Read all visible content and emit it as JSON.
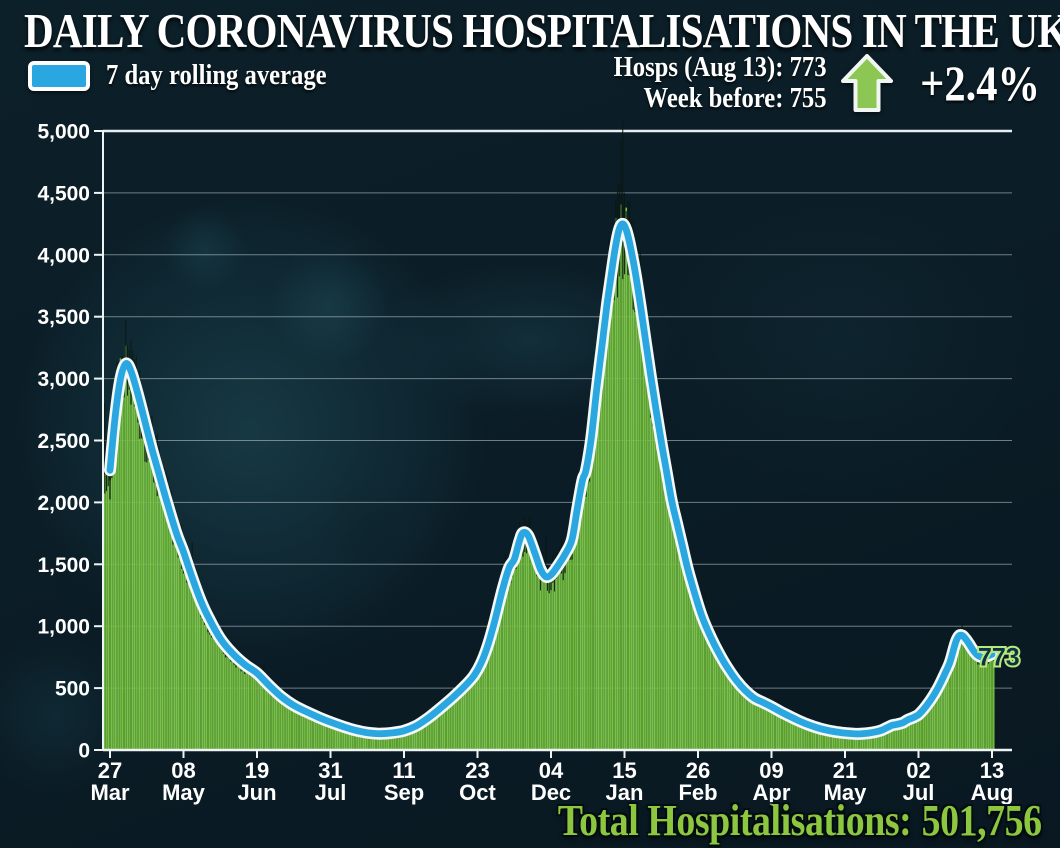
{
  "header": {
    "title": "DAILY CORONAVIRUS HOSPITALISATIONS IN THE UK"
  },
  "legend": {
    "label": "7 day rolling average",
    "swatch_color": "#2aa7e0"
  },
  "stats": {
    "line1": "Hosps (Aug 13): 773",
    "line2": "Week before: 755",
    "change": "+2.4%",
    "arrow_direction": "up",
    "arrow_color": "#8cc653"
  },
  "footer": {
    "label": "Total Hospitalisations:",
    "value": "501,756",
    "color": "#8dc63f"
  },
  "chart_data": {
    "type": "bar+line",
    "title": "Daily coronavirus hospitalisations in the UK",
    "grid": true,
    "legend_position": "top-left",
    "ylim": [
      0,
      5000
    ],
    "ytick_step": 500,
    "ytick_labels": [
      "0",
      "500",
      "1,000",
      "1,500",
      "2,000",
      "2,500",
      "3,000",
      "3,500",
      "4,000",
      "4,500",
      "5,000"
    ],
    "x_unit": "days since 27 Mar 2020, through 13 Aug 2021",
    "xticks": [
      {
        "pos_day": 0,
        "day": "27",
        "month": "Mar"
      },
      {
        "pos_day": 42,
        "day": "08",
        "month": "May"
      },
      {
        "pos_day": 84,
        "day": "19",
        "month": "Jun"
      },
      {
        "pos_day": 126,
        "day": "31",
        "month": "Jul"
      },
      {
        "pos_day": 168,
        "day": "11",
        "month": "Sep"
      },
      {
        "pos_day": 210,
        "day": "23",
        "month": "Oct"
      },
      {
        "pos_day": 252,
        "day": "04",
        "month": "Dec"
      },
      {
        "pos_day": 294,
        "day": "15",
        "month": "Jan"
      },
      {
        "pos_day": 336,
        "day": "26",
        "month": "Feb"
      },
      {
        "pos_day": 378,
        "day": "09",
        "month": "Apr"
      },
      {
        "pos_day": 420,
        "day": "21",
        "month": "May"
      },
      {
        "pos_day": 462,
        "day": "02",
        "month": "Jul"
      },
      {
        "pos_day": 504,
        "day": "13",
        "month": "Aug"
      }
    ],
    "series": [
      {
        "name": "7 day rolling average",
        "type": "line",
        "color": "#2aa7e0",
        "casing_color": "#f4f8f6",
        "points": [
          [
            0,
            2260
          ],
          [
            3,
            2700
          ],
          [
            6,
            3000
          ],
          [
            9,
            3120
          ],
          [
            12,
            3060
          ],
          [
            16,
            2870
          ],
          [
            20,
            2650
          ],
          [
            24,
            2430
          ],
          [
            28,
            2230
          ],
          [
            33,
            1980
          ],
          [
            38,
            1750
          ],
          [
            42,
            1600
          ],
          [
            47,
            1390
          ],
          [
            52,
            1200
          ],
          [
            57,
            1050
          ],
          [
            63,
            900
          ],
          [
            70,
            780
          ],
          [
            77,
            690
          ],
          [
            84,
            620
          ],
          [
            91,
            520
          ],
          [
            98,
            430
          ],
          [
            105,
            360
          ],
          [
            112,
            310
          ],
          [
            119,
            265
          ],
          [
            126,
            225
          ],
          [
            133,
            190
          ],
          [
            140,
            160
          ],
          [
            147,
            140
          ],
          [
            154,
            132
          ],
          [
            161,
            138
          ],
          [
            168,
            155
          ],
          [
            175,
            195
          ],
          [
            182,
            260
          ],
          [
            189,
            340
          ],
          [
            196,
            425
          ],
          [
            203,
            520
          ],
          [
            208,
            600
          ],
          [
            212,
            700
          ],
          [
            216,
            850
          ],
          [
            220,
            1050
          ],
          [
            224,
            1280
          ],
          [
            228,
            1470
          ],
          [
            231,
            1540
          ],
          [
            234,
            1690
          ],
          [
            236,
            1755
          ],
          [
            239,
            1730
          ],
          [
            243,
            1580
          ],
          [
            246,
            1460
          ],
          [
            249,
            1400
          ],
          [
            252,
            1415
          ],
          [
            256,
            1490
          ],
          [
            260,
            1580
          ],
          [
            264,
            1700
          ],
          [
            267,
            1950
          ],
          [
            270,
            2180
          ],
          [
            272,
            2260
          ],
          [
            275,
            2520
          ],
          [
            278,
            2900
          ],
          [
            281,
            3250
          ],
          [
            284,
            3600
          ],
          [
            287,
            3900
          ],
          [
            289,
            4080
          ],
          [
            291,
            4210
          ],
          [
            293,
            4250
          ],
          [
            295,
            4200
          ],
          [
            297,
            4090
          ],
          [
            300,
            3870
          ],
          [
            303,
            3600
          ],
          [
            306,
            3310
          ],
          [
            309,
            3020
          ],
          [
            312,
            2750
          ],
          [
            315,
            2490
          ],
          [
            318,
            2250
          ],
          [
            321,
            2010
          ],
          [
            324,
            1830
          ],
          [
            327,
            1650
          ],
          [
            330,
            1470
          ],
          [
            334,
            1270
          ],
          [
            338,
            1090
          ],
          [
            343,
            920
          ],
          [
            348,
            780
          ],
          [
            353,
            660
          ],
          [
            358,
            560
          ],
          [
            363,
            480
          ],
          [
            368,
            420
          ],
          [
            373,
            385
          ],
          [
            378,
            350
          ],
          [
            383,
            310
          ],
          [
            388,
            275
          ],
          [
            393,
            240
          ],
          [
            398,
            210
          ],
          [
            403,
            185
          ],
          [
            408,
            165
          ],
          [
            413,
            150
          ],
          [
            418,
            140
          ],
          [
            423,
            133
          ],
          [
            428,
            130
          ],
          [
            433,
            136
          ],
          [
            438,
            148
          ],
          [
            441,
            160
          ],
          [
            444,
            180
          ],
          [
            447,
            200
          ],
          [
            450,
            208
          ],
          [
            453,
            220
          ],
          [
            456,
            245
          ],
          [
            459,
            262
          ],
          [
            462,
            285
          ],
          [
            465,
            330
          ],
          [
            468,
            385
          ],
          [
            471,
            450
          ],
          [
            474,
            525
          ],
          [
            477,
            615
          ],
          [
            480,
            710
          ],
          [
            483,
            860
          ],
          [
            485,
            920
          ],
          [
            487,
            925
          ],
          [
            489,
            895
          ],
          [
            491,
            855
          ],
          [
            493,
            810
          ],
          [
            495,
            775
          ],
          [
            497,
            755
          ],
          [
            499,
            750
          ],
          [
            501,
            757
          ],
          [
            504,
            773
          ]
        ]
      },
      {
        "name": "Daily hospitalisations",
        "type": "bar",
        "color": "#79c148",
        "color_alt": "#70b83e",
        "whisker_color": "#0a1812",
        "note": "Daily bars track the 7-day rolling average with small variation; dark whisker ticks extend above bar tops (max spike ~4,580 in mid-Jan, ~3,560 in early Apr 2020)."
      }
    ],
    "annotation": {
      "text": "773",
      "day": 504,
      "value": 773
    }
  }
}
